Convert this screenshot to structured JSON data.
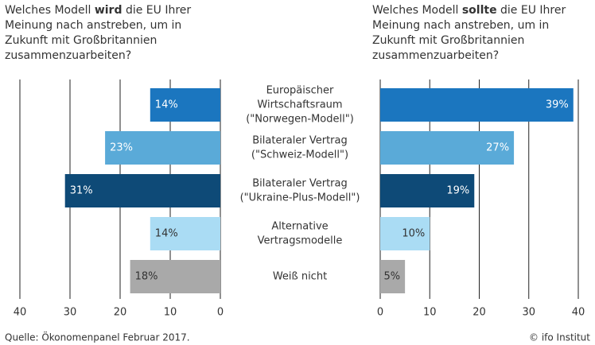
{
  "chart_data": [
    {
      "type": "bar",
      "orientation": "horizontal",
      "x_reversed": true,
      "title": {
        "before": "Welches Modell ",
        "emphasis": "wird",
        "after": " die EU Ihrer Meinung nach anstreben, um in Zukunft mit Großbritannien zusammenzuarbeiten?"
      },
      "categories": [
        [
          "Europäischer",
          "Wirtschaftsraum",
          "(\"Norwegen-Modell\")"
        ],
        [
          "Bilateraler Vertrag",
          "(\"Schweiz-Modell\")"
        ],
        [
          "Bilateraler Vertrag",
          "(\"Ukraine-Plus-Modell\")"
        ],
        [
          "Alternative",
          "Vertragsmodelle"
        ],
        [
          "Weiß nicht"
        ]
      ],
      "values": [
        14,
        23,
        31,
        14,
        18
      ],
      "value_labels": [
        "14%",
        "23%",
        "31%",
        "14%",
        "18%"
      ],
      "colors": [
        "#1b76bf",
        "#5aaad8",
        "#0e4a77",
        "#aadcf4",
        "#a9a9a9"
      ],
      "xlim": [
        0,
        40
      ],
      "xticks": [
        0,
        10,
        20,
        30,
        40
      ],
      "grid": true
    },
    {
      "type": "bar",
      "orientation": "horizontal",
      "x_reversed": false,
      "title": {
        "before": "Welches Modell ",
        "emphasis": "sollte",
        "after": " die EU Ihrer Meinung nach anstreben, um in Zukunft mit Großbritannien zusammenzuarbeiten?"
      },
      "values": [
        39,
        27,
        19,
        10,
        5
      ],
      "value_labels": [
        "39%",
        "27%",
        "19%",
        "10%",
        "5%"
      ],
      "colors": [
        "#1b76bf",
        "#5aaad8",
        "#0e4a77",
        "#aadcf4",
        "#a9a9a9"
      ],
      "xlim": [
        0,
        40
      ],
      "xticks": [
        0,
        10,
        20,
        30,
        40
      ],
      "grid": true
    }
  ],
  "source": "Quelle: Ökonomenpanel Februar 2017.",
  "credit": "© ifo Institut"
}
